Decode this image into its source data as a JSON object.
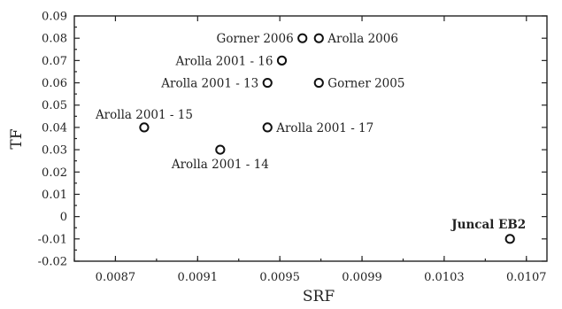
{
  "chart_data": {
    "type": "scatter",
    "xlabel": "SRF",
    "ylabel": "TF",
    "xlim": [
      0.0085,
      0.0108
    ],
    "ylim": [
      -0.02,
      0.09
    ],
    "x_ticks": [
      "0.0087",
      "0.0091",
      "0.0095",
      "0.0099",
      "0.0103",
      "0.0107"
    ],
    "y_ticks": [
      "0.09",
      "0.08",
      "0.07",
      "0.06",
      "0.05",
      "0.04",
      "0.03",
      "0.02",
      "0.01",
      "0",
      "-0.01",
      "-0.02"
    ],
    "points": [
      {
        "label": "Gorner 2006",
        "x": 0.00961,
        "y": 0.08,
        "label_pos": "left",
        "bold": false
      },
      {
        "label": "Arolla 2006",
        "x": 0.00969,
        "y": 0.08,
        "label_pos": "right",
        "bold": false
      },
      {
        "label": "Arolla 2001 - 16",
        "x": 0.00951,
        "y": 0.07,
        "label_pos": "left",
        "bold": false
      },
      {
        "label": "Arolla 2001 - 13",
        "x": 0.00944,
        "y": 0.06,
        "label_pos": "left",
        "bold": false
      },
      {
        "label": "Gorner 2005",
        "x": 0.00969,
        "y": 0.06,
        "label_pos": "right",
        "bold": false
      },
      {
        "label": "Arolla 2001 - 15",
        "x": 0.00884,
        "y": 0.04,
        "label_pos": "above",
        "bold": false
      },
      {
        "label": "Arolla 2001 - 17",
        "x": 0.00944,
        "y": 0.04,
        "label_pos": "right",
        "bold": false
      },
      {
        "label": "Arolla 2001 - 14",
        "x": 0.00921,
        "y": 0.03,
        "label_pos": "below",
        "bold": false
      },
      {
        "label": "Juncal EB2",
        "x": 0.01062,
        "y": -0.01,
        "label_pos": "above-left",
        "bold": true
      }
    ]
  }
}
